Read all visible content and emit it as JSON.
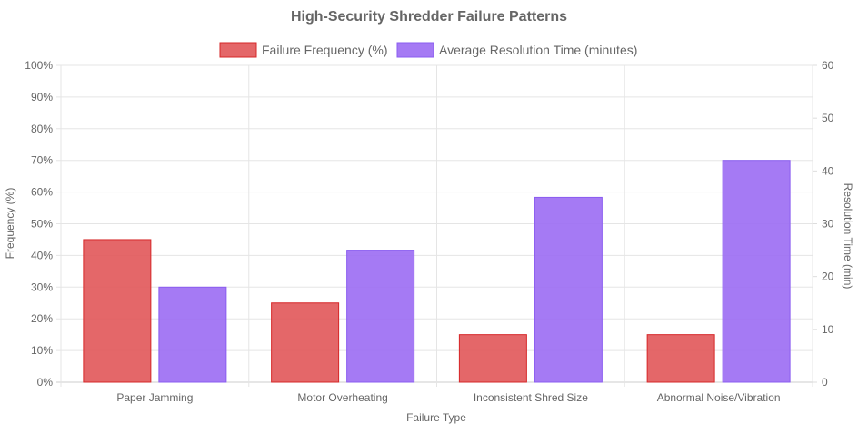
{
  "chart_data": {
    "type": "bar",
    "title": "High-Security Shredder Failure Patterns",
    "categories": [
      "Paper Jamming",
      "Motor Overheating",
      "Inconsistent Shred Size",
      "Abnormal Noise/Vibration"
    ],
    "series": [
      {
        "name": "Failure Frequency (%)",
        "axis": "left",
        "values": [
          45,
          25,
          15,
          15
        ],
        "color": "#e15759",
        "border": "#d62728"
      },
      {
        "name": "Average Resolution Time (minutes)",
        "axis": "right",
        "values": [
          18,
          25,
          35,
          42
        ],
        "color": "#9b6cf3",
        "border": "#8a5cf0"
      }
    ],
    "xlabel": "Failure Type",
    "ylabel": "Frequency (%)",
    "y2label": "Resolution Time (min)",
    "ylim": [
      0,
      100
    ],
    "y2lim": [
      0,
      60
    ],
    "yticks": [
      "0%",
      "10%",
      "20%",
      "30%",
      "40%",
      "50%",
      "60%",
      "70%",
      "80%",
      "90%",
      "100%"
    ],
    "y2ticks": [
      "0",
      "10",
      "20",
      "30",
      "40",
      "50",
      "60"
    ],
    "grid": true,
    "legend": "top-center"
  }
}
